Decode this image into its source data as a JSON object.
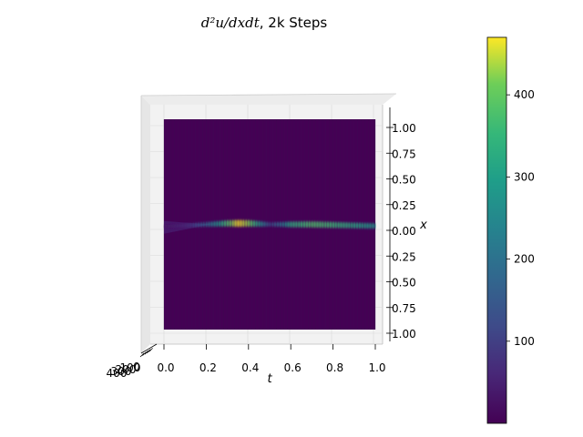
{
  "chart_data": {
    "type": "surface3d",
    "title_math": "d²u/dxdt",
    "title_suffix": ", 2k Steps",
    "xlabel": "t",
    "ylabel": "x",
    "t_ticks": [
      "0.0",
      "0.2",
      "0.4",
      "0.6",
      "0.8",
      "1.0"
    ],
    "x_ticks": [
      "1.00",
      "0.75",
      "0.50",
      "0.25",
      "0.00",
      "0.25",
      "0.50",
      "0.75",
      "1.00"
    ],
    "z_ticks": [
      "0",
      "100",
      "200",
      "300",
      "400"
    ],
    "t_range": [
      0,
      1
    ],
    "x_range": [
      -1,
      1
    ],
    "colorbar": {
      "colormap": "viridis",
      "range": [
        0,
        470
      ],
      "ticks": [
        "100",
        "200",
        "300",
        "400"
      ]
    },
    "ridge": {
      "description_values": true,
      "t": [
        0.0,
        0.1,
        0.2,
        0.3,
        0.35,
        0.4,
        0.45,
        0.5,
        0.55,
        0.6,
        0.7,
        0.8,
        0.9,
        1.0
      ],
      "x": [
        0.02,
        0.01,
        0.0,
        -0.01,
        -0.01,
        -0.01,
        -0.005,
        0.0,
        0.0,
        0.0,
        0.0,
        0.005,
        0.01,
        0.015
      ],
      "value": [
        20,
        60,
        180,
        380,
        470,
        420,
        300,
        120,
        200,
        330,
        380,
        360,
        320,
        280
      ]
    }
  }
}
